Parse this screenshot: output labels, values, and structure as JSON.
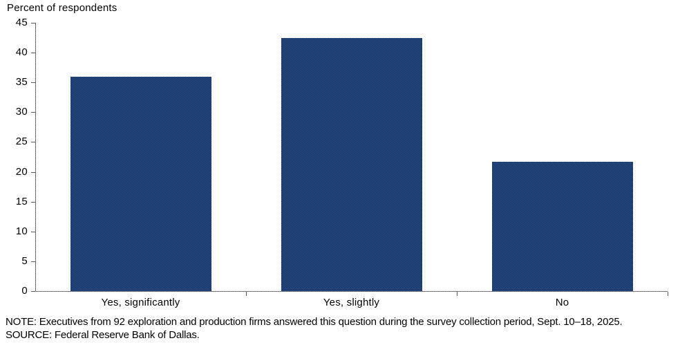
{
  "chart_data": {
    "type": "bar",
    "title": "Percent of respondents",
    "ylabel": "Percent of respondents",
    "categories": [
      "Yes, significantly",
      "Yes, slightly",
      "No"
    ],
    "values": [
      35.9,
      42.4,
      21.7
    ],
    "ylim": [
      0,
      45
    ],
    "yticks": [
      0,
      5,
      10,
      15,
      20,
      25,
      30,
      35,
      40,
      45
    ],
    "grid": false,
    "legend_position": "none",
    "bar_pattern_colors": [
      "#2a5ba4",
      "#0e2546"
    ],
    "axis_color": "#55555f"
  },
  "note": "NOTE: Executives from 92 exploration and production firms answered this question during the survey collection period, Sept. 10–18, 2025.",
  "source": "SOURCE: Federal Reserve Bank of Dallas."
}
